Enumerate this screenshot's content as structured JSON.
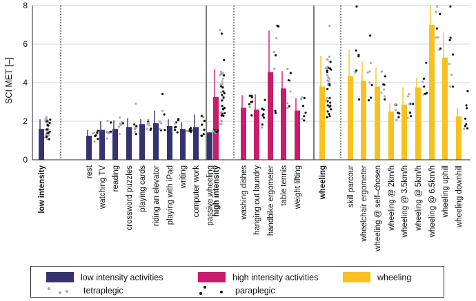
{
  "chart_data": {
    "type": "bar",
    "ylabel": "SCI MET [–]",
    "ylim": [
      0,
      8
    ],
    "yticks": [
      0,
      2,
      4,
      6,
      8
    ],
    "grid": true,
    "colors": {
      "low": "#35336f",
      "high": "#c91c6a",
      "wheel": "#f7c11e",
      "tetra_dots": "#aaaaaa",
      "para_dots": "#111111"
    },
    "categories": [
      {
        "label": "low intensity",
        "group": "low",
        "value": 1.6,
        "err": [
          1.2,
          2.1
        ],
        "summary": true
      },
      {
        "label": "rest",
        "group": "low",
        "value": 1.25,
        "err": [
          1.0,
          1.55
        ]
      },
      {
        "label": "watching TV",
        "group": "low",
        "value": 1.55,
        "err": [
          1.2,
          2.0
        ]
      },
      {
        "label": "reading",
        "group": "low",
        "value": 1.6,
        "err": [
          1.3,
          2.05
        ]
      },
      {
        "label": "crossword puzzles",
        "group": "low",
        "value": 1.7,
        "err": [
          1.35,
          2.15
        ]
      },
      {
        "label": "playing cards",
        "group": "low",
        "value": 1.85,
        "err": [
          1.55,
          2.1
        ]
      },
      {
        "label": "riding an elevator",
        "group": "low",
        "value": 1.9,
        "err": [
          1.45,
          2.55
        ]
      },
      {
        "label": "playing with iPad",
        "group": "low",
        "value": 1.75,
        "err": [
          1.35,
          2.1
        ]
      },
      {
        "label": "writing",
        "group": "low",
        "value": 1.6,
        "err": [
          1.3,
          1.95
        ]
      },
      {
        "label": "computer work",
        "group": "low",
        "value": 1.7,
        "err": [
          1.3,
          2.35
        ]
      },
      {
        "label": "passive wheeling",
        "group": "low",
        "value": 1.42,
        "err": null
      },
      {
        "label": "high intensity",
        "group": "high",
        "value": 3.25,
        "err": [
          2.3,
          4.7
        ],
        "summary": true
      },
      {
        "label": "washing dishes",
        "group": "high",
        "value": 2.7,
        "err": [
          2.25,
          3.35
        ]
      },
      {
        "label": "hanging out laundry",
        "group": "high",
        "value": 2.6,
        "err": [
          2.0,
          3.4
        ]
      },
      {
        "label": "handbike ergometer",
        "group": "high",
        "value": 4.55,
        "err": [
          2.9,
          6.7
        ]
      },
      {
        "label": "table tennis",
        "group": "high",
        "value": 3.7,
        "err": [
          2.65,
          4.6
        ]
      },
      {
        "label": "weight lifting",
        "group": "high",
        "value": 2.55,
        "err": [
          2.0,
          3.2
        ]
      },
      {
        "label": "wheeling",
        "group": "wheel",
        "value": 3.8,
        "err": [
          2.6,
          5.4
        ],
        "summary": true
      },
      {
        "label": "skill parcour",
        "group": "wheel",
        "value": 4.35,
        "err": [
          3.1,
          5.7
        ]
      },
      {
        "label": "wheelchair ergometer",
        "group": "wheel",
        "value": 4.1,
        "err": [
          3.4,
          5.1
        ]
      },
      {
        "label": "wheeling @ self–chosen",
        "group": "wheel",
        "value": 3.8,
        "err": [
          2.8,
          4.8
        ]
      },
      {
        "label": "wheeling @ 2km/h",
        "group": "wheel",
        "value": 2.5,
        "err": [
          2.1,
          2.9
        ]
      },
      {
        "label": "wheeling @ 3.5km/h",
        "group": "wheel",
        "value": 2.85,
        "err": [
          2.25,
          3.75
        ]
      },
      {
        "label": "wheeling @ 5km/h",
        "group": "wheel",
        "value": 3.75,
        "err": [
          3.3,
          4.25
        ]
      },
      {
        "label": "wheeling @ 6.5km/h",
        "group": "wheel",
        "value": 7.0,
        "err": [
          5.8,
          8.0
        ]
      },
      {
        "label": "wheeling uphill",
        "group": "wheel",
        "value": 5.3,
        "err": [
          4.0,
          6.6
        ]
      },
      {
        "label": "wheeling downhill",
        "group": "wheel",
        "value": 2.25,
        "err": [
          1.6,
          2.7
        ]
      }
    ],
    "legend": {
      "low_label": "low intensity activities",
      "high_label": "high intensity activities",
      "wheel_label": "wheeling",
      "tetra_label": "tetraplegic",
      "para_label": "paraplegic"
    }
  }
}
